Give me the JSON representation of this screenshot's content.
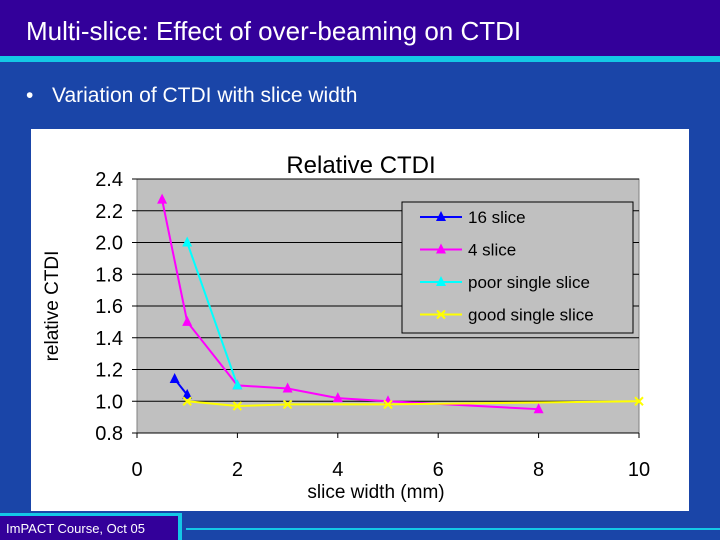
{
  "slide": {
    "title": "Multi-slice: Effect of over-beaming on CTDI",
    "bullet_symbol": "•",
    "bullet_text": "Variation of CTDI with slice width",
    "footer": "ImPACT Course, Oct 05"
  },
  "colors": {
    "slide_background": "#1a45a8",
    "title_bar": "#33009a",
    "accent_stripe": "#14c8e6",
    "plot_area": "#c0c0c0",
    "chart_background": "#ffffff"
  },
  "chart_data": {
    "type": "line",
    "title": "Relative CTDI",
    "xlabel": "slice width (mm)",
    "ylabel": "relative CTDI",
    "xlim": [
      0,
      10
    ],
    "ylim": [
      0.8,
      2.4
    ],
    "xticks": [
      "0",
      "2",
      "4",
      "6",
      "8",
      "10"
    ],
    "yticks": [
      "2.4",
      "2.2",
      "2.0",
      "1.8",
      "1.6",
      "1.4",
      "1.2",
      "1.0",
      "0.8"
    ],
    "grid": "horizontal",
    "legend_position": "top-right",
    "series": [
      {
        "name": "16 slice",
        "color": "#0000ff",
        "marker": "triangle",
        "points": [
          [
            0.75,
            1.14
          ],
          [
            1.0,
            1.04
          ]
        ]
      },
      {
        "name": "4 slice",
        "color": "#ff00ff",
        "marker": "triangle",
        "points": [
          [
            0.5,
            2.27
          ],
          [
            1.0,
            1.5
          ],
          [
            2.0,
            1.1
          ],
          [
            3.0,
            1.08
          ],
          [
            4.0,
            1.02
          ],
          [
            5.0,
            1.0
          ],
          [
            8.0,
            0.95
          ]
        ]
      },
      {
        "name": "poor single slice",
        "color": "#00ffff",
        "marker": "triangle",
        "points": [
          [
            1.0,
            2.0
          ],
          [
            2.0,
            1.1
          ]
        ]
      },
      {
        "name": "good single slice",
        "color": "#ffff00",
        "marker": "x",
        "points": [
          [
            1.0,
            1.0
          ],
          [
            2.0,
            0.97
          ],
          [
            3.0,
            0.98
          ],
          [
            5.0,
            0.98
          ],
          [
            10.0,
            1.0
          ]
        ]
      }
    ]
  }
}
